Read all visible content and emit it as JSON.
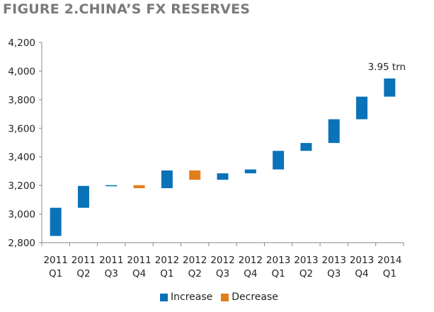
{
  "title": "FIGURE 2.CHINA’S FX RESERVES",
  "chart_data": {
    "type": "waterfall",
    "title": "FIGURE 2.CHINA’S FX RESERVES",
    "categories": [
      [
        "2011",
        "Q1"
      ],
      [
        "2011",
        "Q2"
      ],
      [
        "2011",
        "Q3"
      ],
      [
        "2011",
        "Q4"
      ],
      [
        "2012",
        "Q1"
      ],
      [
        "2012",
        "Q2"
      ],
      [
        "2012",
        "Q3"
      ],
      [
        "2012",
        "Q4"
      ],
      [
        "2013",
        "Q1"
      ],
      [
        "2013",
        "Q2"
      ],
      [
        "2013",
        "Q3"
      ],
      [
        "2013",
        "Q4"
      ],
      [
        "2014",
        "Q1"
      ]
    ],
    "start": [
      2847,
      3044,
      3197,
      3202,
      3181,
      3305,
      3240,
      3285,
      3312,
      3442,
      3497,
      3663,
      3821
    ],
    "end": [
      3044,
      3197,
      3202,
      3181,
      3305,
      3240,
      3285,
      3312,
      3442,
      3497,
      3663,
      3821,
      3948
    ],
    "ylim": [
      2800,
      4200
    ],
    "yticks": [
      2800,
      3000,
      3200,
      3400,
      3600,
      3800,
      4000,
      4200
    ],
    "ytick_labels": [
      "2,800",
      "3,000",
      "3,200",
      "3,400",
      "3,600",
      "3,800",
      "4,000",
      "4,200"
    ],
    "annotation": "3.95 trn",
    "legend": [
      {
        "name": "Increase",
        "color": "#0a72b8"
      },
      {
        "name": "Decrease",
        "color": "#e0801a"
      }
    ],
    "legend_position": "bottom",
    "grid": false
  }
}
